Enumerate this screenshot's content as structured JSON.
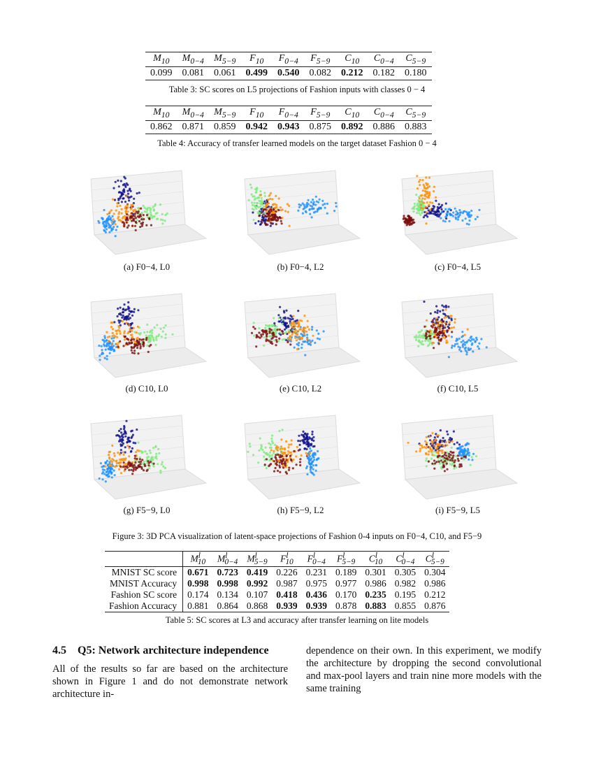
{
  "table3": {
    "headers": [
      "M10",
      "M0−4",
      "M5−9",
      "F10",
      "F0−4",
      "F5−9",
      "C10",
      "C0−4",
      "C5−9"
    ],
    "values": [
      "0.099",
      "0.081",
      "0.061",
      "0.499",
      "0.540",
      "0.082",
      "0.212",
      "0.182",
      "0.180"
    ],
    "bold": [
      false,
      false,
      false,
      true,
      true,
      false,
      true,
      false,
      false
    ],
    "caption": "Table 3: SC scores on L5 projections of Fashion inputs with classes 0 − 4"
  },
  "table4": {
    "headers": [
      "M10",
      "M0−4",
      "M5−9",
      "F10",
      "F0−4",
      "F5−9",
      "C10",
      "C0−4",
      "C5−9"
    ],
    "values": [
      "0.862",
      "0.871",
      "0.859",
      "0.942",
      "0.943",
      "0.875",
      "0.892",
      "0.886",
      "0.883"
    ],
    "bold": [
      false,
      false,
      false,
      true,
      true,
      false,
      true,
      false,
      false
    ],
    "caption": "Table 4: Accuracy of transfer learned models on the target dataset Fashion 0 − 4"
  },
  "figure3": {
    "subcaptions": [
      "(a) F0−4, L0",
      "(b) F0−4, L2",
      "(c) F0−4, L5",
      "(d) C10, L0",
      "(e) C10, L2",
      "(f) C10, L5",
      "(g) F5−9, L0",
      "(h) F5−9, L2",
      "(i) F5−9, L5"
    ],
    "caption": "Figure 3: 3D PCA visualization of latent-space projections of Fashion 0-4 inputs on F0−4, C10, and F5−9",
    "class_colors": [
      "#0d0d8a",
      "#1e90ff",
      "#7ee87e",
      "#ff8c00",
      "#7a0c0c"
    ]
  },
  "table5": {
    "headers": [
      "Ml10",
      "Ml0−4",
      "Ml5−9",
      "Fl10",
      "Fl0−4",
      "Fl5−9",
      "Cl10",
      "Cl0−4",
      "Cl5−9"
    ],
    "rows": [
      {
        "label": "MNIST SC score",
        "values": [
          "0.671",
          "0.723",
          "0.419",
          "0.226",
          "0.231",
          "0.189",
          "0.301",
          "0.305",
          "0.304"
        ],
        "bold": [
          true,
          true,
          true,
          false,
          false,
          false,
          false,
          false,
          false
        ]
      },
      {
        "label": "MNIST Accuracy",
        "values": [
          "0.998",
          "0.998",
          "0.992",
          "0.987",
          "0.975",
          "0.977",
          "0.986",
          "0.982",
          "0.986"
        ],
        "bold": [
          true,
          true,
          true,
          false,
          false,
          false,
          false,
          false,
          false
        ]
      },
      {
        "label": "Fashion SC score",
        "values": [
          "0.174",
          "0.134",
          "0.107",
          "0.418",
          "0.436",
          "0.170",
          "0.235",
          "0.195",
          "0.212"
        ],
        "bold": [
          false,
          false,
          false,
          true,
          true,
          false,
          true,
          false,
          false
        ]
      },
      {
        "label": "Fashion Accuracy",
        "values": [
          "0.881",
          "0.864",
          "0.868",
          "0.939",
          "0.939",
          "0.878",
          "0.883",
          "0.855",
          "0.876"
        ],
        "bold": [
          false,
          false,
          false,
          true,
          true,
          false,
          true,
          false,
          false
        ]
      }
    ],
    "caption": "Table 5: SC scores at L3 and accuracy after transfer learning on lite models"
  },
  "section": {
    "number": "4.5",
    "title": "Q5: Network architecture independence",
    "left_text": "All of the results so far are based on the architecture shown in Figure 1 and do not demonstrate network architecture in-",
    "right_text": "dependence on their own. In this experiment, we modify the architecture by dropping the second convolutional and max-pool layers and train nine more models with the same training"
  }
}
